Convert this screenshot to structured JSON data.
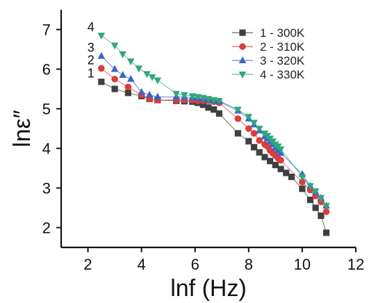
{
  "chart_data": {
    "type": "scatter",
    "xlabel": "lnf (Hz)",
    "ylabel": "lnε″",
    "xlim": [
      1,
      12
    ],
    "ylim": [
      1.5,
      7.5
    ],
    "xticks": [
      2,
      4,
      6,
      8,
      10,
      12
    ],
    "yticks": [
      2,
      3,
      4,
      5,
      6,
      7
    ],
    "grid": false,
    "legend_position": "top-right",
    "series": [
      {
        "name": "1 - 300K",
        "curve_label": "1",
        "color": "#404040",
        "marker": "square",
        "x": [
          2.5,
          3.0,
          3.5,
          4.0,
          4.3,
          4.6,
          5.3,
          5.6,
          5.9,
          6.1,
          6.3,
          6.5,
          6.7,
          6.9,
          7.6,
          8.0,
          8.2,
          8.4,
          8.6,
          8.8,
          9.0,
          9.2,
          9.4,
          9.6,
          10.0,
          10.3,
          10.5,
          10.7,
          10.9
        ],
        "y": [
          5.68,
          5.5,
          5.4,
          5.32,
          5.25,
          5.22,
          5.2,
          5.19,
          5.18,
          5.15,
          5.1,
          5.03,
          4.98,
          4.88,
          4.38,
          4.18,
          4.03,
          3.9,
          3.78,
          3.68,
          3.58,
          3.48,
          3.38,
          3.28,
          2.98,
          2.7,
          2.5,
          2.3,
          1.87
        ]
      },
      {
        "name": "2 - 310K",
        "curve_label": "2",
        "color": "#dc3c3c",
        "marker": "circle",
        "x": [
          2.5,
          3.0,
          3.5,
          4.0,
          4.3,
          4.6,
          5.3,
          5.6,
          5.9,
          6.1,
          6.3,
          6.5,
          6.7,
          6.9,
          7.6,
          8.0,
          8.2,
          8.4,
          8.6,
          8.7,
          8.8,
          8.9,
          9.0,
          9.1,
          9.2,
          10.0,
          10.3,
          10.5,
          10.7,
          10.9
        ],
        "y": [
          6.02,
          5.75,
          5.55,
          5.35,
          5.25,
          5.22,
          5.22,
          5.22,
          5.22,
          5.2,
          5.2,
          5.2,
          5.18,
          5.15,
          4.75,
          4.5,
          4.38,
          4.2,
          4.1,
          4.05,
          3.95,
          3.88,
          3.82,
          3.75,
          3.7,
          3.15,
          2.95,
          2.8,
          2.65,
          2.4
        ]
      },
      {
        "name": "3 - 320K",
        "curve_label": "3",
        "color": "#3a66c4",
        "marker": "triangle-up",
        "x": [
          2.5,
          3.0,
          3.3,
          3.6,
          4.0,
          4.3,
          4.6,
          5.3,
          5.6,
          5.9,
          6.1,
          6.3,
          6.5,
          6.7,
          6.9,
          7.6,
          8.0,
          8.2,
          8.4,
          8.6,
          8.7,
          8.8,
          8.9,
          9.0,
          9.1,
          9.2,
          10.0,
          10.3,
          10.5,
          10.7,
          10.9
        ],
        "y": [
          6.33,
          6.0,
          5.85,
          5.75,
          5.42,
          5.35,
          5.3,
          5.3,
          5.3,
          5.28,
          5.27,
          5.25,
          5.22,
          5.2,
          5.18,
          4.95,
          4.75,
          4.6,
          4.45,
          4.3,
          4.25,
          4.18,
          4.1,
          4.02,
          3.95,
          3.88,
          3.35,
          3.05,
          2.9,
          2.75,
          2.55
        ]
      },
      {
        "name": "4 - 330K",
        "curve_label": "4",
        "color": "#2ca87f",
        "marker": "triangle-down",
        "x": [
          2.5,
          3.0,
          3.3,
          3.6,
          3.9,
          4.2,
          4.4,
          4.6,
          5.3,
          5.6,
          5.9,
          6.1,
          6.3,
          6.5,
          6.7,
          6.9,
          7.6,
          8.0,
          8.2,
          8.4,
          8.6,
          8.7,
          8.8,
          8.9,
          9.0,
          9.1,
          9.2,
          10.0,
          10.3,
          10.5,
          10.7,
          10.9
        ],
        "y": [
          6.85,
          6.6,
          6.38,
          6.2,
          6.02,
          5.88,
          5.8,
          5.72,
          5.38,
          5.35,
          5.32,
          5.3,
          5.28,
          5.25,
          5.22,
          5.2,
          4.98,
          4.8,
          4.65,
          4.5,
          4.38,
          4.32,
          4.25,
          4.18,
          4.1,
          4.05,
          3.98,
          3.28,
          3.05,
          2.92,
          2.75,
          2.55
        ]
      }
    ]
  }
}
